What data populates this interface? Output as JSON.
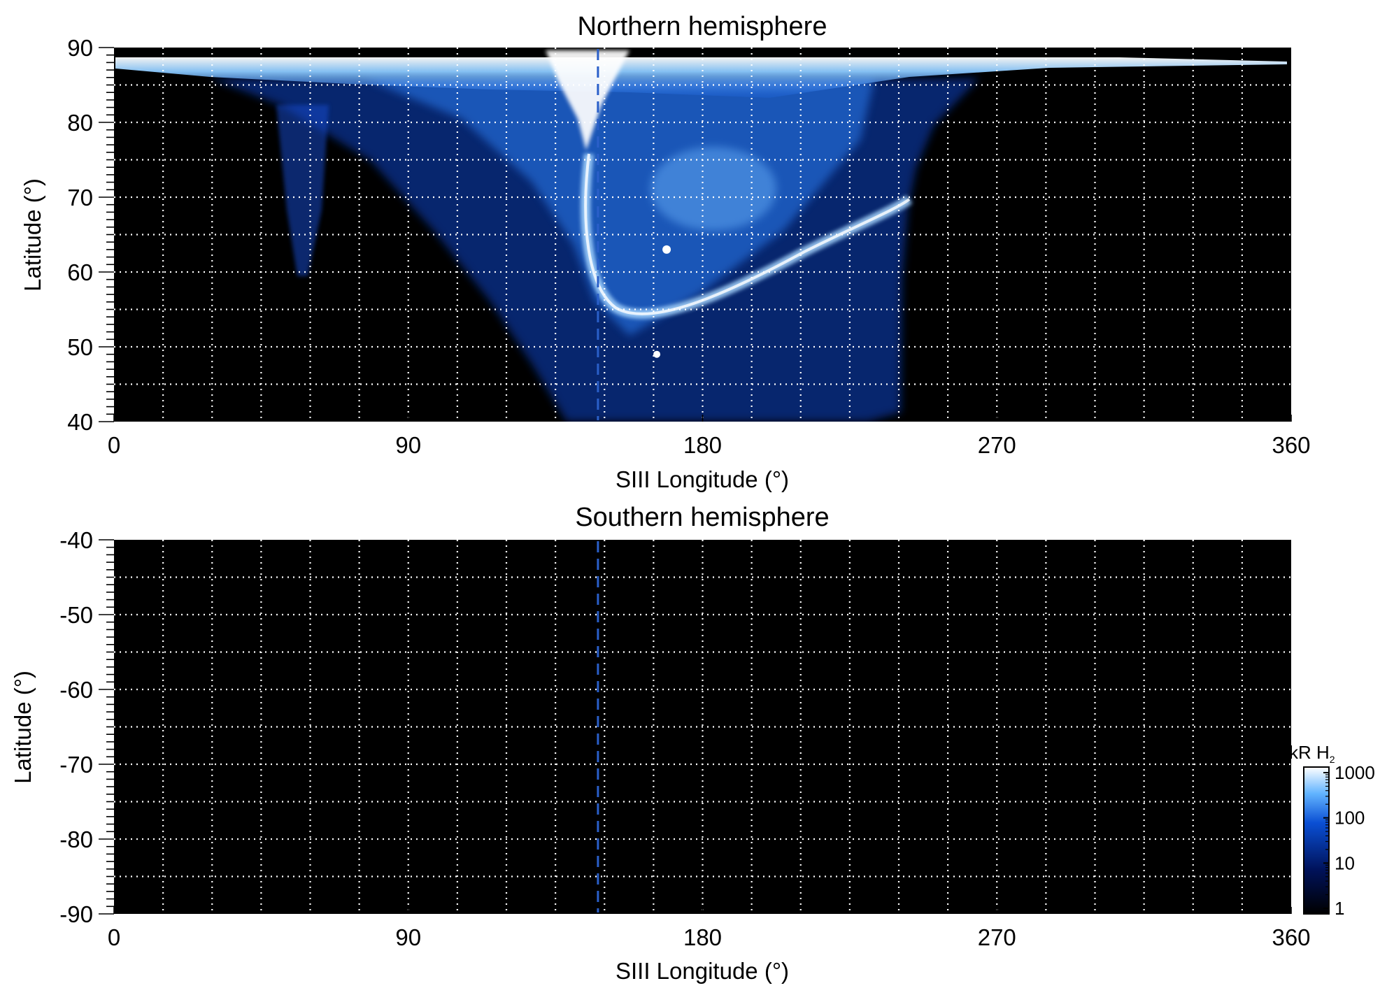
{
  "chart_data": [
    {
      "type": "heatmap",
      "title": "Northern hemisphere",
      "xlabel": "SIII Longitude (°)",
      "ylabel": "Latitude (°)",
      "xlim": [
        0,
        360
      ],
      "ylim": [
        40,
        90
      ],
      "xticks": [
        "0",
        "90",
        "180",
        "270",
        "360"
      ],
      "yticks": [
        "40",
        "50",
        "60",
        "70",
        "80",
        "90"
      ],
      "grid": true,
      "reference_longitude": 148,
      "reference_line_color": "#2a5fc9",
      "features": [
        {
          "longitude": 169,
          "latitude": 63
        },
        {
          "longitude": 166,
          "latitude": 49
        }
      ]
    },
    {
      "type": "heatmap",
      "title": "Southern hemisphere",
      "xlabel": "SIII Longitude (°)",
      "ylabel": "Latitude (°)",
      "xlim": [
        0,
        360
      ],
      "ylim": [
        -90,
        -40
      ],
      "xticks": [
        "0",
        "90",
        "180",
        "270",
        "360"
      ],
      "yticks": [
        "-40",
        "-50",
        "-60",
        "-70",
        "-80",
        "-90"
      ],
      "grid": true,
      "reference_longitude": 148,
      "reference_line_color": "#2a5fc9"
    }
  ],
  "colorbar": {
    "label_main": "kR H",
    "label_sub": "2",
    "scale": "log",
    "ticks": [
      "1",
      "10",
      "100",
      "1000"
    ],
    "colors": [
      "#000000",
      "#00125a",
      "#0a4fd4",
      "#62b4ff",
      "#ffffff"
    ]
  }
}
